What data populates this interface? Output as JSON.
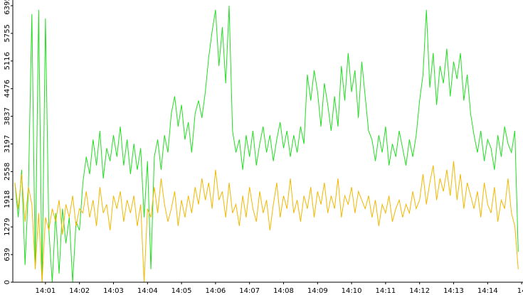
{
  "chart_data": {
    "type": "line",
    "x": [
      0.1,
      0.2,
      0.3,
      0.4,
      0.5,
      0.6,
      0.7,
      0.8,
      0.9,
      1.0,
      1.1,
      1.2,
      1.3,
      1.4,
      1.5,
      1.6,
      1.7,
      1.8,
      1.9,
      2.0,
      2.1,
      2.2,
      2.3,
      2.4,
      2.5,
      2.6,
      2.7,
      2.8,
      2.9,
      3.0,
      3.1,
      3.2,
      3.3,
      3.4,
      3.5,
      3.6,
      3.7,
      3.8,
      3.9,
      4.0,
      4.1,
      4.2,
      4.3,
      4.4,
      4.5,
      4.6,
      4.7,
      4.8,
      4.9,
      5.0,
      5.1,
      5.2,
      5.3,
      5.4,
      5.5,
      5.6,
      5.7,
      5.8,
      5.9,
      6.0,
      6.1,
      6.2,
      6.3,
      6.4,
      6.5,
      6.6,
      6.7,
      6.8,
      6.9,
      7.0,
      7.1,
      7.2,
      7.3,
      7.4,
      7.5,
      7.6,
      7.7,
      7.8,
      7.9,
      8.0,
      8.1,
      8.2,
      8.3,
      8.4,
      8.5,
      8.6,
      8.7,
      8.8,
      8.9,
      9.0,
      9.1,
      9.2,
      9.3,
      9.4,
      9.5,
      9.6,
      9.7,
      9.8,
      9.9,
      10.0,
      10.1,
      10.2,
      10.3,
      10.4,
      10.5,
      10.6,
      10.7,
      10.8,
      10.9,
      11.0,
      11.1,
      11.2,
      11.3,
      11.4,
      11.5,
      11.6,
      11.7,
      11.8,
      11.9,
      12.0,
      12.1,
      12.2,
      12.3,
      12.4,
      12.5,
      12.6,
      12.7,
      12.8,
      12.9,
      13.0,
      13.1,
      13.2,
      13.3,
      13.4,
      13.5,
      13.6,
      13.7,
      13.8,
      13.9,
      14.0,
      14.1,
      14.2,
      14.3,
      14.4,
      14.5,
      14.6,
      14.7,
      14.8,
      14.9
    ],
    "series": [
      {
        "color": "#22dd22",
        "values": [
          2300,
          1500,
          2600,
          400,
          2200,
          6200,
          300,
          6300,
          0,
          6100,
          1200,
          0,
          1600,
          200,
          1700,
          900,
          1500,
          0,
          1400,
          1200,
          2300,
          2900,
          2500,
          3300,
          2700,
          3500,
          2400,
          3100,
          2800,
          3400,
          2900,
          3600,
          2700,
          3300,
          2500,
          3200,
          2600,
          3100,
          1500,
          2800,
          300,
          2900,
          3300,
          2600,
          3400,
          3000,
          3900,
          4300,
          3600,
          4100,
          3300,
          3700,
          3000,
          3900,
          4200,
          3800,
          4400,
          5200,
          5800,
          6300,
          5000,
          5900,
          4600,
          6395,
          3500,
          3000,
          3300,
          2600,
          3400,
          2900,
          3500,
          2700,
          3200,
          3600,
          3000,
          3400,
          2800,
          3300,
          3700,
          3100,
          3500,
          2900,
          3400,
          3000,
          3600,
          3200,
          4800,
          4200,
          4900,
          4400,
          3600,
          4600,
          4100,
          3500,
          4300,
          3600,
          5000,
          4200,
          5300,
          4400,
          4900,
          3800,
          5100,
          4300,
          3500,
          3300,
          2800,
          3400,
          3000,
          3600,
          2700,
          3200,
          2900,
          3500,
          3100,
          2700,
          3300,
          2900,
          3400,
          4200,
          4800,
          6300,
          4500,
          5300,
          4100,
          5000,
          4600,
          5400,
          4300,
          5100,
          4700,
          5300,
          4200,
          4800,
          3900,
          3400,
          3000,
          3500,
          2800,
          3300,
          3100,
          2600,
          3400,
          2900,
          3600,
          3200,
          3000,
          3500,
          700
        ]
      },
      {
        "color": "#f0b800",
        "values": [
          2300,
          1700,
          2500,
          1400,
          2200,
          1800,
          300,
          1600,
          0,
          1500,
          1200,
          1700,
          1400,
          1900,
          1100,
          1800,
          1500,
          2000,
          1300,
          1700,
          1600,
          2100,
          1500,
          1900,
          1300,
          2200,
          1600,
          1800,
          1200,
          2000,
          1700,
          2100,
          1400,
          1900,
          1600,
          2000,
          1300,
          1800,
          0,
          1700,
          1500,
          2200,
          1600,
          2400,
          1800,
          1400,
          1700,
          2100,
          1300,
          1900,
          1500,
          2000,
          1600,
          2200,
          1800,
          2400,
          1900,
          2300,
          1700,
          2600,
          1900,
          2100,
          1500,
          2300,
          1600,
          1800,
          1300,
          2000,
          1500,
          2200,
          1700,
          1400,
          2100,
          1600,
          1900,
          1200,
          1800,
          2300,
          1500,
          2000,
          1700,
          2400,
          1600,
          1900,
          1400,
          2000,
          1700,
          2200,
          1500,
          2100,
          1800,
          2300,
          1600,
          2000,
          1700,
          2400,
          1500,
          2000,
          1800,
          2200,
          1600,
          2100,
          1900,
          1700,
          2000,
          1500,
          1900,
          1300,
          1800,
          1600,
          2000,
          1400,
          1700,
          1900,
          1500,
          1800,
          1600,
          2100,
          1700,
          1900,
          2500,
          1800,
          2300,
          2700,
          1900,
          2400,
          2100,
          2600,
          2000,
          2800,
          1900,
          2500,
          1700,
          2300,
          2000,
          1700,
          2100,
          1500,
          2300,
          1800,
          1600,
          2200,
          1400,
          1900,
          1700,
          2400,
          1600,
          1300,
          300
        ]
      }
    ],
    "xlim": [
      0.04,
      15.04
    ],
    "xticks": [
      {
        "value": 1,
        "label": "14:01"
      },
      {
        "value": 2,
        "label": "14:02"
      },
      {
        "value": 3,
        "label": "14:03"
      },
      {
        "value": 4,
        "label": "14:04"
      },
      {
        "value": 5,
        "label": "14:05"
      },
      {
        "value": 6,
        "label": "14:06"
      },
      {
        "value": 7,
        "label": "14:07"
      },
      {
        "value": 8,
        "label": "14:08"
      },
      {
        "value": 9,
        "label": "14:09"
      },
      {
        "value": 10,
        "label": "14:10"
      },
      {
        "value": 11,
        "label": "14:11"
      },
      {
        "value": 12,
        "label": "14:12"
      },
      {
        "value": 13,
        "label": "14:13"
      },
      {
        "value": 14,
        "label": "14:14"
      },
      {
        "value": 15,
        "label": "14"
      }
    ],
    "ylim": [
      0,
      6395
    ],
    "yticks": [
      0,
      639,
      1279,
      1918,
      2558,
      3197,
      3837,
      4476,
      5116,
      5755,
      6395
    ]
  }
}
